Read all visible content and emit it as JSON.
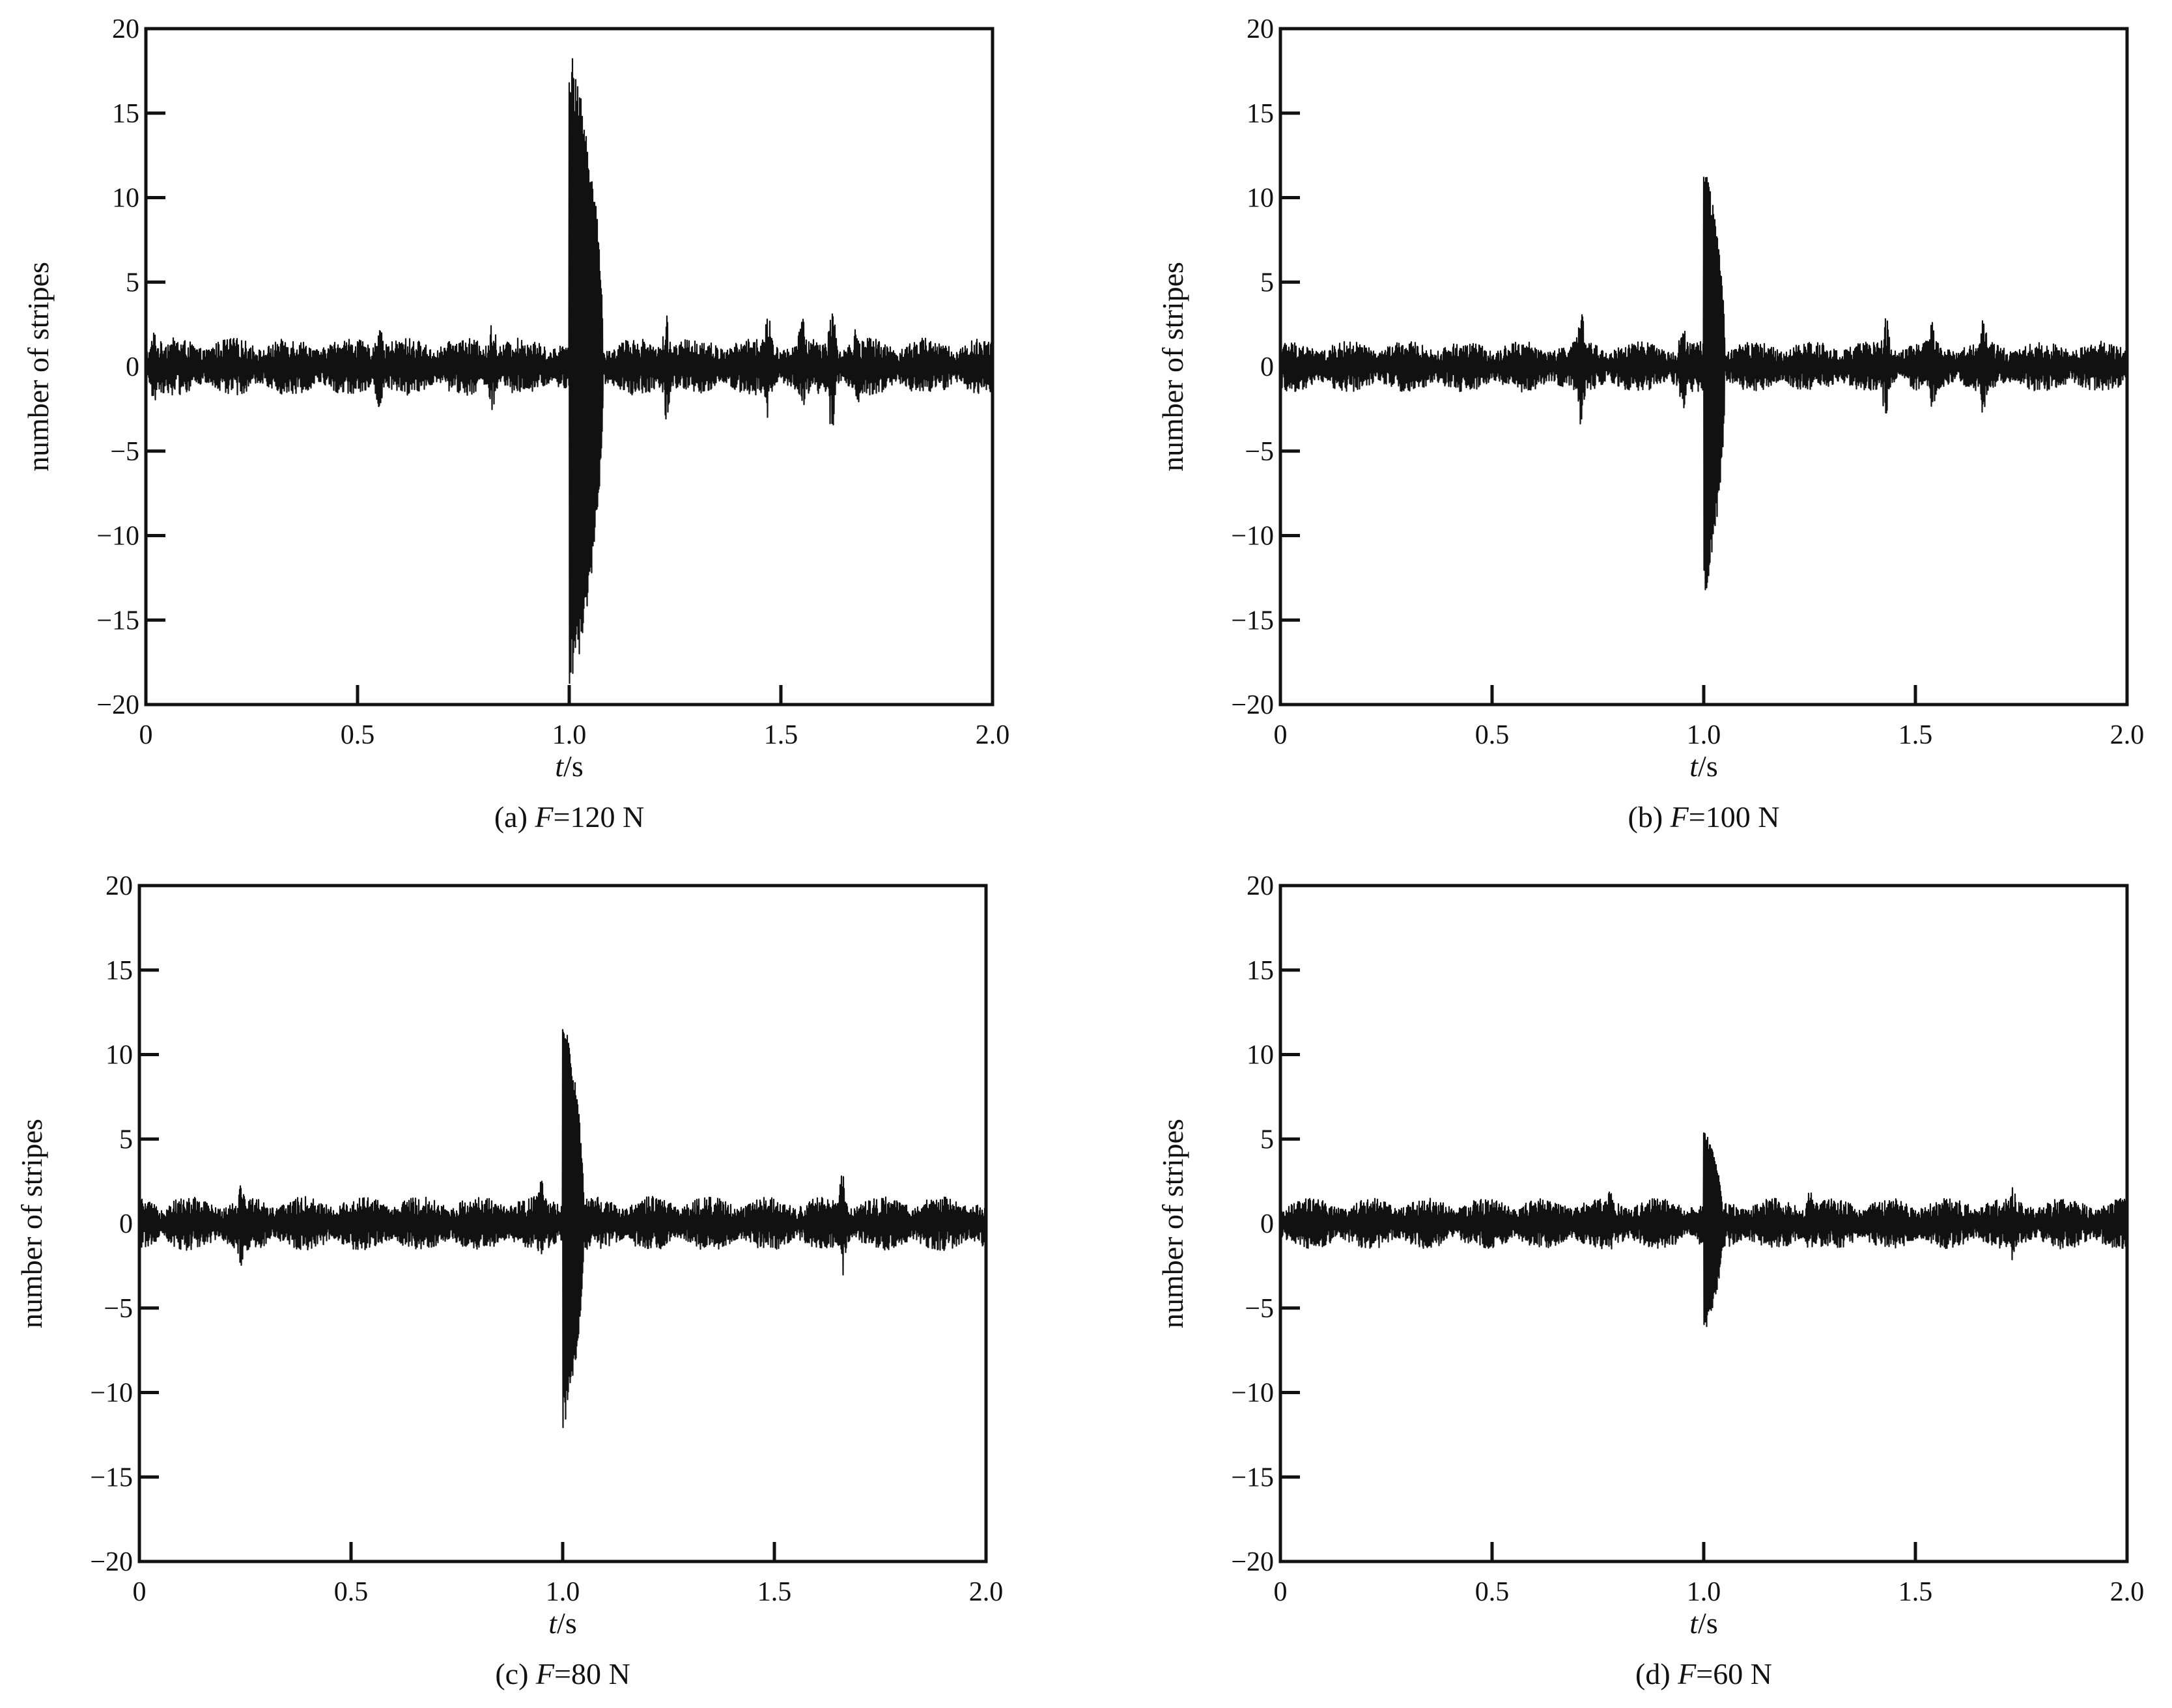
{
  "chart_data": [
    {
      "type": "line",
      "panel": "a",
      "caption": {
        "prefix": "(a) ",
        "var": "F",
        "rest": "=120 N"
      },
      "xlabel": {
        "var": "t",
        "rest": "/s"
      },
      "ylabel": "number of stripes",
      "xlim": [
        0,
        2.0
      ],
      "ylim": [
        -20,
        20
      ],
      "xticks": [
        0,
        0.5,
        1.0,
        1.5,
        2.0
      ],
      "xtick_labels": [
        "0",
        "0.5",
        "1.0",
        "1.5",
        "2.0"
      ],
      "yticks": [
        -20,
        -15,
        -10,
        -5,
        0,
        5,
        10,
        15,
        20
      ],
      "ytick_labels": [
        "−20",
        "−15",
        "−10",
        "−5",
        "0",
        "5",
        "10",
        "15",
        "20"
      ],
      "signal": {
        "baseline_amplitude": 1.7,
        "peak_time": 1.0,
        "peak_max": 19.2,
        "peak_min": -20,
        "peak_duration": 0.08,
        "bursts": [
          {
            "t": 0.02,
            "amp": 2.2
          },
          {
            "t": 0.55,
            "amp": 3.0
          },
          {
            "t": 0.82,
            "amp": 3.0
          },
          {
            "t": 1.23,
            "amp": 3.2
          },
          {
            "t": 1.47,
            "amp": 3.3
          },
          {
            "t": 1.55,
            "amp": 3.0
          },
          {
            "t": 1.62,
            "amp": 4.0
          },
          {
            "t": 1.68,
            "amp": 2.6
          }
        ]
      },
      "color": "#111111"
    },
    {
      "type": "line",
      "panel": "b",
      "caption": {
        "prefix": "(b) ",
        "var": "F",
        "rest": "=100 N"
      },
      "xlabel": {
        "var": "t",
        "rest": "/s"
      },
      "ylabel": "number of stripes",
      "xlim": [
        0,
        2.0
      ],
      "ylim": [
        -20,
        20
      ],
      "xticks": [
        0,
        0.5,
        1.0,
        1.5,
        2.0
      ],
      "xtick_labels": [
        "0",
        "0.5",
        "1.0",
        "1.5",
        "2.0"
      ],
      "yticks": [
        -20,
        -15,
        -10,
        -5,
        0,
        5,
        10,
        15,
        20
      ],
      "ytick_labels": [
        "−20",
        "−15",
        "−10",
        "−5",
        "0",
        "5",
        "10",
        "15",
        "20"
      ],
      "signal": {
        "baseline_amplitude": 1.5,
        "peak_time": 1.0,
        "peak_max": 12.5,
        "peak_min": -14,
        "peak_duration": 0.05,
        "bursts": [
          {
            "t": 0.71,
            "amp": 3.6
          },
          {
            "t": 0.95,
            "amp": 2.6
          },
          {
            "t": 1.43,
            "amp": 3.3
          },
          {
            "t": 1.54,
            "amp": 3.0
          },
          {
            "t": 1.66,
            "amp": 3.1
          }
        ]
      },
      "color": "#111111"
    },
    {
      "type": "line",
      "panel": "c",
      "caption": {
        "prefix": "(c) ",
        "var": "F",
        "rest": "=80 N"
      },
      "xlabel": {
        "var": "t",
        "rest": "/s"
      },
      "ylabel": "number of stripes",
      "xlim": [
        0,
        2.0
      ],
      "ylim": [
        -20,
        20
      ],
      "xticks": [
        0,
        0.5,
        1.0,
        1.5,
        2.0
      ],
      "xtick_labels": [
        "0",
        "0.5",
        "1.0",
        "1.5",
        "2.0"
      ],
      "yticks": [
        -20,
        -15,
        -10,
        -5,
        0,
        5,
        10,
        15,
        20
      ],
      "ytick_labels": [
        "−20",
        "−15",
        "−10",
        "−5",
        "0",
        "5",
        "10",
        "15",
        "20"
      ],
      "signal": {
        "baseline_amplitude": 1.6,
        "peak_time": 1.0,
        "peak_max": 12.5,
        "peak_min": -12.5,
        "peak_duration": 0.05,
        "bursts": [
          {
            "t": 0.24,
            "amp": 2.6
          },
          {
            "t": 0.95,
            "amp": 2.6
          },
          {
            "t": 1.66,
            "amp": 3.2
          }
        ]
      },
      "color": "#111111"
    },
    {
      "type": "line",
      "panel": "d",
      "caption": {
        "prefix": "(d) ",
        "var": "F",
        "rest": "=60 N"
      },
      "xlabel": {
        "var": "t",
        "rest": "/s"
      },
      "ylabel": "number of stripes",
      "xlim": [
        0,
        2.0
      ],
      "ylim": [
        -20,
        20
      ],
      "xticks": [
        0,
        0.5,
        1.0,
        1.5,
        2.0
      ],
      "xtick_labels": [
        "0",
        "0.5",
        "1.0",
        "1.5",
        "2.0"
      ],
      "yticks": [
        -20,
        -15,
        -10,
        -5,
        0,
        5,
        10,
        15,
        20
      ],
      "ytick_labels": [
        "−20",
        "−15",
        "−10",
        "−5",
        "0",
        "5",
        "10",
        "15",
        "20"
      ],
      "signal": {
        "baseline_amplitude": 1.5,
        "peak_time": 1.0,
        "peak_max": 5.7,
        "peak_min": -6.7,
        "peak_duration": 0.045,
        "bursts": [
          {
            "t": 0.78,
            "amp": 2.2
          },
          {
            "t": 1.25,
            "amp": 2.0
          },
          {
            "t": 1.73,
            "amp": 2.3
          }
        ]
      },
      "color": "#111111"
    }
  ]
}
